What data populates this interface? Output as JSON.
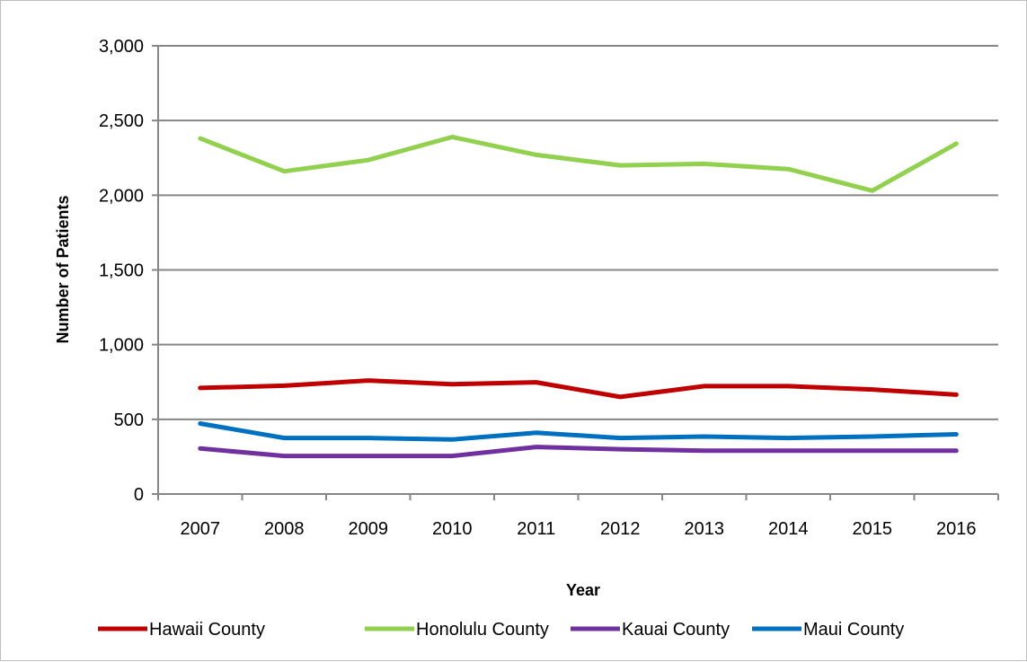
{
  "chart_data": {
    "type": "line",
    "title": "",
    "xlabel": "Year",
    "ylabel": "Number of Patients",
    "categories": [
      "2007",
      "2008",
      "2009",
      "2010",
      "2011",
      "2012",
      "2013",
      "2014",
      "2015",
      "2016"
    ],
    "y_ticks": [
      "0",
      "500",
      "1,000",
      "1,500",
      "2,000",
      "2,500",
      "3,000"
    ],
    "ylim": [
      0,
      3000
    ],
    "grid": true,
    "legend_position": "bottom",
    "series": [
      {
        "name": "Hawaii County",
        "color": "#c00000",
        "values": [
          710,
          725,
          760,
          735,
          748,
          650,
          722,
          722,
          700,
          665
        ]
      },
      {
        "name": "Honolulu County",
        "color": "#92d050",
        "values": [
          2380,
          2160,
          2235,
          2390,
          2270,
          2200,
          2210,
          2175,
          2030,
          2345
        ]
      },
      {
        "name": "Kauai County",
        "color": "#7030a0",
        "values": [
          305,
          255,
          255,
          255,
          315,
          300,
          290,
          290,
          290,
          290
        ]
      },
      {
        "name": "Maui County",
        "color": "#0070c0",
        "values": [
          472,
          375,
          375,
          365,
          410,
          375,
          385,
          375,
          385,
          400
        ]
      }
    ]
  }
}
